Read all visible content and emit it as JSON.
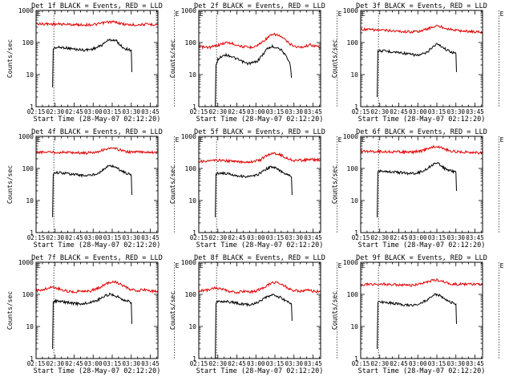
{
  "colors": {
    "events": "#000000",
    "lld": "#e00000",
    "axis": "#000000",
    "background": "#ffffff"
  },
  "common": {
    "ylabel": "Counts/sec",
    "xlabel": "Start Time (28-May-07 02:12:20)",
    "xticks": [
      "02:15",
      "02:30",
      "02:45",
      "03:00",
      "03:15",
      "03:30",
      "03:45"
    ],
    "yticks": [
      "1",
      "10",
      "100",
      "1000"
    ],
    "flag_label": "E",
    "dashed_times_min": [
      14,
      109
    ]
  },
  "chart_data": [
    {
      "type": "line",
      "title": "Det 1f BLACK = Events, RED = LLD",
      "xlabel": "Start Time (28-May-07 02:12:20)",
      "ylabel": "Counts/sec",
      "xlim_min": [
        0,
        96
      ],
      "ylim": [
        1,
        1000
      ],
      "yscale": "log",
      "series": [
        {
          "name": "Events",
          "color": "#000000",
          "x": [
            13,
            13.5,
            16,
            22,
            30,
            38,
            44,
            48,
            53,
            55,
            58,
            60,
            63,
            65,
            68,
            70,
            72,
            75,
            75.5
          ],
          "y": [
            4,
            65,
            70,
            70,
            62,
            58,
            62,
            70,
            88,
            110,
            120,
            122,
            115,
            95,
            72,
            65,
            62,
            58,
            12
          ]
        },
        {
          "name": "LLD",
          "color": "#e00000",
          "x": [
            0,
            8,
            16,
            24,
            32,
            40,
            48,
            52,
            56,
            60,
            64,
            68,
            72,
            76,
            80,
            88,
            96
          ],
          "y": [
            380,
            380,
            375,
            370,
            360,
            355,
            370,
            400,
            430,
            440,
            420,
            380,
            360,
            355,
            360,
            370,
            365
          ]
        }
      ]
    },
    {
      "type": "line",
      "title": "Det 2f BLACK = Events, RED = LLD",
      "xlabel": "Start Time (28-May-07 02:12:20)",
      "ylabel": "Counts/sec",
      "xlim_min": [
        0,
        96
      ],
      "ylim": [
        1,
        1000
      ],
      "yscale": "log",
      "series": [
        {
          "name": "Events",
          "color": "#000000",
          "x": [
            13,
            13.5,
            15,
            20,
            25,
            32,
            38,
            42,
            46,
            50,
            54,
            58,
            62,
            66,
            68,
            70,
            72,
            73
          ],
          "y": [
            1,
            18,
            30,
            42,
            38,
            28,
            22,
            23,
            26,
            40,
            65,
            75,
            70,
            55,
            40,
            30,
            22,
            8
          ]
        },
        {
          "name": "LLD",
          "color": "#e00000",
          "x": [
            0,
            5,
            10,
            16,
            22,
            28,
            34,
            40,
            46,
            52,
            56,
            60,
            64,
            68,
            72,
            76,
            80,
            88,
            96
          ],
          "y": [
            75,
            70,
            72,
            85,
            100,
            90,
            75,
            70,
            80,
            120,
            160,
            180,
            160,
            120,
            90,
            75,
            70,
            85,
            70
          ]
        }
      ]
    },
    {
      "type": "line",
      "title": "Det 3f BLACK = Events, RED = LLD",
      "xlabel": "Start Time (28-May-07 02:12:20)",
      "ylabel": "Counts/sec",
      "xlim_min": [
        0,
        96
      ],
      "ylim": [
        1,
        1000
      ],
      "yscale": "log",
      "series": [
        {
          "name": "Events",
          "color": "#000000",
          "x": [
            13,
            13.5,
            16,
            24,
            32,
            40,
            46,
            52,
            56,
            60,
            64,
            68,
            72,
            75,
            75.5
          ],
          "y": [
            2,
            55,
            55,
            52,
            48,
            42,
            40,
            48,
            70,
            90,
            75,
            58,
            50,
            45,
            12
          ]
        },
        {
          "name": "LLD",
          "color": "#e00000",
          "x": [
            0,
            8,
            16,
            24,
            32,
            40,
            48,
            54,
            60,
            66,
            72,
            80,
            88,
            96
          ],
          "y": [
            260,
            250,
            240,
            235,
            220,
            215,
            230,
            280,
            330,
            290,
            250,
            230,
            220,
            210
          ]
        }
      ]
    },
    {
      "type": "line",
      "title": "Det 4f BLACK = Events, RED = LLD",
      "xlabel": "Start Time (28-May-07 02:12:20)",
      "ylabel": "Counts/sec",
      "xlim_min": [
        0,
        96
      ],
      "ylim": [
        1,
        1000
      ],
      "yscale": "log",
      "series": [
        {
          "name": "Events",
          "color": "#000000",
          "x": [
            13,
            13.5,
            16,
            22,
            30,
            38,
            44,
            48,
            53,
            56,
            60,
            63,
            66,
            70,
            74,
            75,
            75.5
          ],
          "y": [
            3,
            70,
            75,
            72,
            65,
            60,
            62,
            70,
            90,
            115,
            120,
            110,
            90,
            75,
            65,
            60,
            15
          ]
        },
        {
          "name": "LLD",
          "color": "#e00000",
          "x": [
            0,
            8,
            16,
            24,
            32,
            40,
            48,
            52,
            56,
            60,
            64,
            68,
            72,
            76,
            80,
            88,
            96
          ],
          "y": [
            320,
            325,
            320,
            318,
            310,
            305,
            330,
            370,
            410,
            420,
            400,
            360,
            330,
            320,
            330,
            325,
            320
          ]
        }
      ]
    },
    {
      "type": "line",
      "title": "Det 5f BLACK = Events, RED = LLD",
      "xlabel": "Start Time (28-May-07 02:12:20)",
      "ylabel": "Counts/sec",
      "xlim_min": [
        0,
        96
      ],
      "ylim": [
        1,
        1000
      ],
      "yscale": "log",
      "series": [
        {
          "name": "Events",
          "color": "#000000",
          "x": [
            13,
            13.5,
            16,
            22,
            30,
            38,
            44,
            48,
            52,
            56,
            60,
            64,
            68,
            72,
            73,
            73.5
          ],
          "y": [
            3,
            65,
            72,
            70,
            60,
            55,
            58,
            70,
            90,
            110,
            105,
            85,
            70,
            62,
            55,
            15
          ]
        },
        {
          "name": "LLD",
          "color": "#e00000",
          "x": [
            0,
            8,
            16,
            24,
            32,
            40,
            48,
            52,
            56,
            60,
            64,
            68,
            72,
            76,
            80,
            88,
            96
          ],
          "y": [
            165,
            170,
            180,
            170,
            160,
            160,
            180,
            230,
            280,
            300,
            270,
            220,
            190,
            175,
            180,
            190,
            180
          ]
        }
      ]
    },
    {
      "type": "line",
      "title": "Det 6f BLACK = Events, RED = LLD",
      "xlabel": "Start Time (28-May-07 02:12:20)",
      "ylabel": "Counts/sec",
      "xlim_min": [
        0,
        96
      ],
      "ylim": [
        1,
        1000
      ],
      "yscale": "log",
      "series": [
        {
          "name": "Events",
          "color": "#000000",
          "x": [
            13,
            13.5,
            16,
            22,
            30,
            38,
            44,
            48,
            53,
            56,
            60,
            63,
            66,
            70,
            74,
            75,
            75.5
          ],
          "y": [
            3,
            80,
            85,
            80,
            75,
            70,
            72,
            80,
            100,
            130,
            145,
            130,
            100,
            85,
            80,
            75,
            20
          ]
        },
        {
          "name": "LLD",
          "color": "#e00000",
          "x": [
            0,
            8,
            16,
            24,
            32,
            40,
            48,
            52,
            56,
            60,
            64,
            68,
            72,
            76,
            80,
            88,
            96
          ],
          "y": [
            340,
            340,
            335,
            330,
            330,
            320,
            350,
            400,
            460,
            480,
            440,
            380,
            340,
            330,
            330,
            320,
            300
          ]
        }
      ]
    },
    {
      "type": "line",
      "title": "Det 7f BLACK = Events, RED = LLD",
      "xlabel": "Start Time (28-May-07 02:12:20)",
      "ylabel": "Counts/sec",
      "xlim_min": [
        0,
        96
      ],
      "ylim": [
        1,
        1000
      ],
      "yscale": "log",
      "series": [
        {
          "name": "Events",
          "color": "#000000",
          "x": [
            13,
            13.5,
            16,
            22,
            30,
            36,
            42,
            48,
            53,
            58,
            62,
            66,
            70,
            74,
            75,
            75.5
          ],
          "y": [
            2,
            60,
            62,
            58,
            52,
            50,
            55,
            65,
            85,
            100,
            95,
            78,
            65,
            60,
            55,
            12
          ]
        },
        {
          "name": "LLD",
          "color": "#e00000",
          "x": [
            0,
            6,
            12,
            18,
            24,
            30,
            36,
            42,
            48,
            54,
            58,
            62,
            66,
            70,
            74,
            80,
            86,
            92,
            96
          ],
          "y": [
            130,
            140,
            170,
            150,
            125,
            120,
            130,
            125,
            150,
            200,
            240,
            250,
            210,
            170,
            140,
            130,
            140,
            125,
            130
          ]
        }
      ]
    },
    {
      "type": "line",
      "title": "Det 8f BLACK = Events, RED = LLD",
      "xlabel": "Start Time (28-May-07 02:12:20)",
      "ylabel": "Counts/sec",
      "xlim_min": [
        0,
        96
      ],
      "ylim": [
        1,
        1000
      ],
      "yscale": "log",
      "series": [
        {
          "name": "Events",
          "color": "#000000",
          "x": [
            13,
            13.5,
            16,
            22,
            28,
            34,
            40,
            44,
            48,
            52,
            56,
            60,
            64,
            68,
            72,
            73,
            73.5
          ],
          "y": [
            1,
            55,
            62,
            60,
            55,
            50,
            48,
            52,
            60,
            75,
            90,
            95,
            80,
            65,
            55,
            50,
            15
          ]
        },
        {
          "name": "LLD",
          "color": "#e00000",
          "x": [
            0,
            6,
            12,
            18,
            24,
            30,
            36,
            42,
            48,
            54,
            58,
            62,
            66,
            70,
            74,
            80,
            86,
            92,
            96
          ],
          "y": [
            130,
            135,
            160,
            145,
            120,
            115,
            125,
            120,
            140,
            190,
            230,
            240,
            200,
            160,
            135,
            125,
            135,
            120,
            125
          ]
        }
      ]
    },
    {
      "type": "line",
      "title": "Det 9f BLACK = Events, RED = LLD",
      "xlabel": "Start Time (28-May-07 02:12:20)",
      "ylabel": "Counts/sec",
      "xlim_min": [
        0,
        96
      ],
      "ylim": [
        1,
        1000
      ],
      "yscale": "log",
      "series": [
        {
          "name": "Events",
          "color": "#000000",
          "x": [
            13,
            13.5,
            16,
            22,
            30,
            38,
            44,
            48,
            53,
            56,
            60,
            63,
            66,
            70,
            74,
            75,
            75.5
          ],
          "y": [
            2,
            55,
            58,
            55,
            50,
            45,
            48,
            55,
            70,
            90,
            100,
            90,
            70,
            58,
            52,
            50,
            12
          ]
        },
        {
          "name": "LLD",
          "color": "#e00000",
          "x": [
            0,
            8,
            16,
            24,
            32,
            40,
            48,
            52,
            56,
            60,
            64,
            68,
            72,
            76,
            80,
            88,
            96
          ],
          "y": [
            200,
            205,
            210,
            205,
            195,
            190,
            210,
            240,
            270,
            280,
            260,
            230,
            210,
            205,
            210,
            205,
            200
          ]
        }
      ]
    }
  ]
}
